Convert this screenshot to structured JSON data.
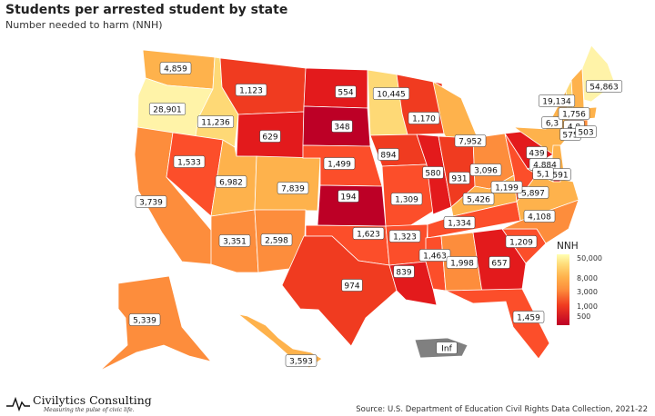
{
  "title": "Students per arrested student by state",
  "subtitle": "Number needed to harm (NNH)",
  "legend": {
    "title": "NNH",
    "ticks": [
      "50,000",
      "8,000",
      "3,000",
      "1,000",
      "500"
    ],
    "scale": "log"
  },
  "brand": {
    "name": "Civilytics Consulting",
    "tagline": "Measuring the pulse of civic life."
  },
  "source": "Source: U.S. Department of Education Civil Rights Data Collection, 2021-22",
  "states": {
    "WA": "4,859",
    "OR": "28,901",
    "CA": "3,739",
    "ID": "11,236",
    "NV": "1,533",
    "MT": "1,123",
    "WY": "629",
    "UT": "6,982",
    "AZ": "3,351",
    "CO": "7,839",
    "NM": "2,598",
    "ND": "554",
    "SD": "348",
    "NE": "1,499",
    "KS": "194",
    "OK": "1,623",
    "TX": "974",
    "MN": "10,445",
    "IA": "894",
    "MO": "1,309",
    "AR": "1,323",
    "LA": "839",
    "WI": "1,170",
    "IL": "580",
    "MI": "7,952",
    "IN": "931",
    "OH": "3,096",
    "KY": "5,426",
    "TN": "1,334",
    "MS": "1,463",
    "AL": "1,998",
    "GA": "657",
    "FL": "1,459",
    "SC": "1,209",
    "NC": "4,108",
    "VA": "5,897",
    "WV": "1,199",
    "PA": "439",
    "NY": "6,3",
    "VT": "19,134",
    "NH": "1,756",
    "MA": "4,8",
    "CT": "575",
    "RI": "503",
    "NJ": "4,884",
    "DE": "591",
    "MD": "5,1",
    "ME": "54,863",
    "AK": "5,339",
    "HI": "3,593",
    "PR": "Inf"
  },
  "colors": {
    "c1": "#bd0026",
    "c2": "#e31a1c",
    "c3": "#f03b20",
    "c4": "#fc4e2a",
    "c5": "#fd8d3c",
    "c6": "#feb24c",
    "c7": "#fed976",
    "c8": "#fff3a8",
    "none": "#808080",
    "land": "#f8f8f8"
  }
}
